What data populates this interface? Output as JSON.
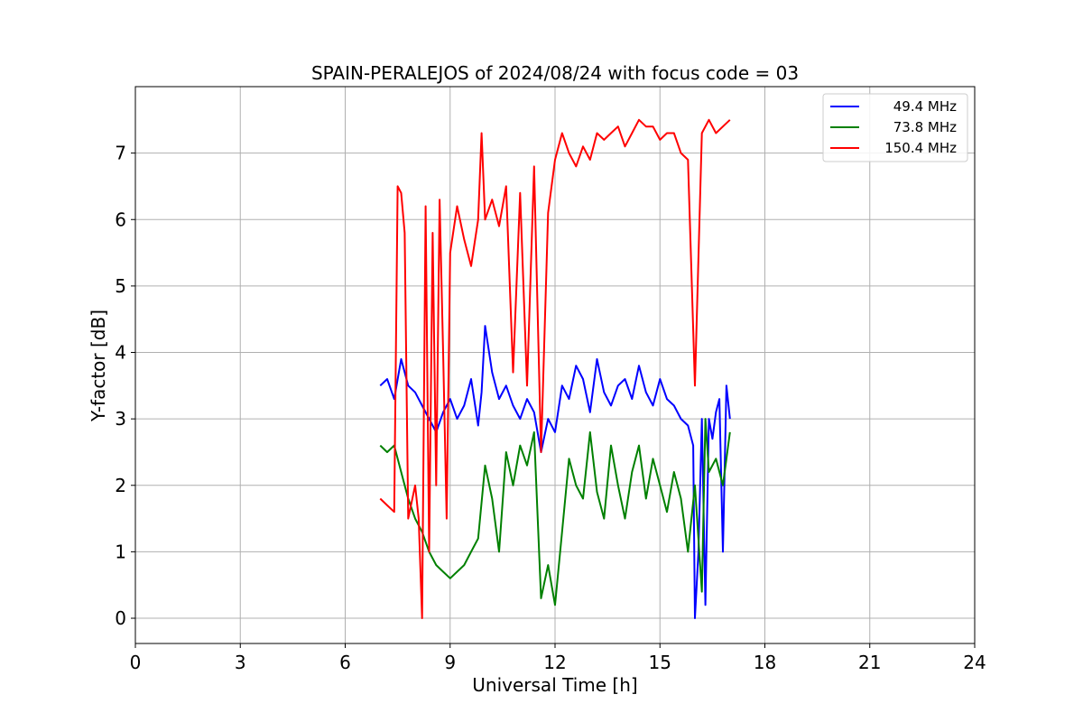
{
  "chart_data": {
    "type": "line",
    "title": "SPAIN-PERALEJOS of 2024/08/24 with focus code = 03",
    "xlabel": "Universal Time [h]",
    "ylabel": "Y-factor [dB]",
    "xlim": [
      0,
      24
    ],
    "ylim": [
      -0.38,
      8.0
    ],
    "xticks": [
      0,
      3,
      6,
      9,
      12,
      15,
      18,
      21,
      24
    ],
    "yticks": [
      0,
      1,
      2,
      3,
      4,
      5,
      6,
      7
    ],
    "grid": true,
    "legend_position": "top-right",
    "series": [
      {
        "name": "49.4 MHz",
        "color": "#0000ff",
        "x": [
          7.0,
          7.2,
          7.4,
          7.6,
          7.8,
          8.0,
          8.2,
          8.4,
          8.6,
          8.8,
          9.0,
          9.2,
          9.4,
          9.6,
          9.8,
          9.9,
          10.0,
          10.2,
          10.4,
          10.6,
          10.8,
          11.0,
          11.2,
          11.4,
          11.6,
          11.8,
          12.0,
          12.2,
          12.4,
          12.6,
          12.8,
          13.0,
          13.2,
          13.4,
          13.6,
          13.8,
          14.0,
          14.2,
          14.4,
          14.6,
          14.8,
          15.0,
          15.2,
          15.4,
          15.6,
          15.8,
          15.95,
          16.0,
          16.1,
          16.2,
          16.3,
          16.4,
          16.5,
          16.6,
          16.7,
          16.8,
          16.9,
          17.0
        ],
        "values": [
          3.5,
          3.6,
          3.3,
          3.9,
          3.5,
          3.4,
          3.2,
          3.0,
          2.8,
          3.1,
          3.3,
          3.0,
          3.2,
          3.6,
          2.9,
          3.4,
          4.4,
          3.7,
          3.3,
          3.5,
          3.2,
          3.0,
          3.3,
          3.1,
          2.5,
          3.0,
          2.8,
          3.5,
          3.3,
          3.8,
          3.6,
          3.1,
          3.9,
          3.4,
          3.2,
          3.5,
          3.6,
          3.3,
          3.8,
          3.4,
          3.2,
          3.6,
          3.3,
          3.2,
          3.0,
          2.9,
          2.6,
          0.0,
          1.0,
          3.0,
          0.2,
          3.0,
          2.7,
          3.1,
          3.3,
          1.0,
          3.5,
          3.0
        ]
      },
      {
        "name": "73.8 MHz",
        "color": "#008000",
        "x": [
          7.0,
          7.2,
          7.4,
          7.6,
          7.8,
          8.0,
          8.2,
          8.4,
          8.6,
          8.8,
          9.0,
          9.2,
          9.4,
          9.6,
          9.8,
          10.0,
          10.2,
          10.4,
          10.6,
          10.8,
          11.0,
          11.2,
          11.4,
          11.6,
          11.8,
          12.0,
          12.2,
          12.4,
          12.6,
          12.8,
          13.0,
          13.2,
          13.4,
          13.6,
          13.8,
          14.0,
          14.2,
          14.4,
          14.6,
          14.8,
          15.0,
          15.2,
          15.4,
          15.6,
          15.8,
          16.0,
          16.2,
          16.3,
          16.4,
          16.6,
          16.8,
          17.0
        ],
        "values": [
          2.6,
          2.5,
          2.6,
          2.2,
          1.8,
          1.5,
          1.3,
          1.0,
          0.8,
          0.7,
          0.6,
          0.7,
          0.8,
          1.0,
          1.2,
          2.3,
          1.8,
          1.0,
          2.5,
          2.0,
          2.6,
          2.3,
          2.8,
          0.3,
          0.8,
          0.2,
          1.3,
          2.4,
          2.0,
          1.8,
          2.8,
          1.9,
          1.5,
          2.6,
          2.0,
          1.5,
          2.2,
          2.6,
          1.8,
          2.4,
          2.0,
          1.6,
          2.2,
          1.8,
          1.0,
          2.0,
          0.4,
          3.0,
          2.2,
          2.4,
          2.0,
          2.8
        ]
      },
      {
        "name": "150.4 MHz",
        "color": "#ff0000",
        "x": [
          7.0,
          7.2,
          7.4,
          7.5,
          7.6,
          7.7,
          7.8,
          8.0,
          8.1,
          8.2,
          8.3,
          8.4,
          8.5,
          8.6,
          8.7,
          8.8,
          8.9,
          9.0,
          9.2,
          9.4,
          9.6,
          9.8,
          9.9,
          10.0,
          10.2,
          10.4,
          10.6,
          10.8,
          11.0,
          11.2,
          11.4,
          11.6,
          11.8,
          12.0,
          12.2,
          12.4,
          12.6,
          12.8,
          13.0,
          13.2,
          13.4,
          13.6,
          13.8,
          14.0,
          14.2,
          14.4,
          14.6,
          14.8,
          15.0,
          15.2,
          15.4,
          15.6,
          15.8,
          16.0,
          16.2,
          16.4,
          16.6,
          16.8,
          17.0
        ],
        "values": [
          1.8,
          1.7,
          1.6,
          6.5,
          6.4,
          5.8,
          1.5,
          2.0,
          1.5,
          0.0,
          6.2,
          1.0,
          5.8,
          2.0,
          6.3,
          4.0,
          1.5,
          5.5,
          6.2,
          5.7,
          5.3,
          6.0,
          7.3,
          6.0,
          6.3,
          5.9,
          6.5,
          3.7,
          6.4,
          3.5,
          6.8,
          2.5,
          6.1,
          6.9,
          7.3,
          7.0,
          6.8,
          7.1,
          6.9,
          7.3,
          7.2,
          7.3,
          7.4,
          7.1,
          7.3,
          7.5,
          7.4,
          7.4,
          7.2,
          7.3,
          7.3,
          7.0,
          6.9,
          3.5,
          7.3,
          7.5,
          7.3,
          7.4,
          7.5
        ]
      }
    ]
  }
}
